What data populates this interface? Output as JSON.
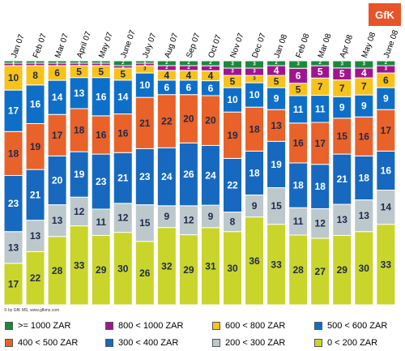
{
  "brand": {
    "logo_text": "GfK",
    "copyright": "© by GfK MS, www.gfkms.com"
  },
  "colors": {
    "gte1000": "#1a8a3a",
    "800_1000": "#a0158f",
    "600_800": "#f8c21a",
    "500_600": "#0e6fc9",
    "400_500": "#e8622a",
    "300_400": "#1769c0",
    "200_300": "#bcc8cc",
    "0_200": "#c9d52a"
  },
  "chart_data": {
    "type": "bar",
    "stacked": true,
    "normalized_100": true,
    "categories": [
      "Jan 07",
      "Feb 07",
      "Mar 07",
      "April 07",
      "May 07",
      "June 07",
      "July 07",
      "Aug 07",
      "Sep 07",
      "Oct 07",
      "Nov 07",
      "Dec 07",
      "Jan 08",
      "Feb 08",
      "Mar 08",
      "Apr 08",
      "May 08",
      "June 08"
    ],
    "series": [
      {
        "name": "0 < 200 ZAR",
        "key": "0_200",
        "values": [
          17,
          22,
          28,
          33,
          29,
          30,
          26,
          32,
          29,
          31,
          30,
          36,
          33,
          28,
          27,
          29,
          30,
          33
        ]
      },
      {
        "name": "200 < 300 ZAR",
        "key": "200_300",
        "values": [
          13,
          13,
          13,
          12,
          11,
          12,
          15,
          9,
          12,
          9,
          8,
          9,
          15,
          11,
          12,
          13,
          13,
          14
        ]
      },
      {
        "name": "300 < 400 ZAR",
        "key": "300_400",
        "values": [
          23,
          21,
          20,
          19,
          23,
          21,
          23,
          24,
          26,
          24,
          22,
          18,
          19,
          18,
          18,
          21,
          18,
          16
        ]
      },
      {
        "name": "400 < 500 ZAR",
        "key": "400_500",
        "values": [
          18,
          19,
          17,
          18,
          16,
          16,
          21,
          22,
          20,
          20,
          19,
          18,
          13,
          16,
          17,
          15,
          16,
          17
        ]
      },
      {
        "name": "500 < 600 ZAR",
        "key": "500_600",
        "values": [
          17,
          16,
          14,
          13,
          16,
          14,
          10,
          6,
          6,
          6,
          10,
          10,
          9,
          11,
          11,
          9,
          9,
          9
        ]
      },
      {
        "name": "600 < 800 ZAR",
        "key": "600_800",
        "values": [
          10,
          8,
          6,
          5,
          5,
          5,
          3,
          4,
          4,
          4,
          5,
          3,
          5,
          5,
          7,
          7,
          7,
          6
        ]
      },
      {
        "name": "800 < 1000 ZAR",
        "key": "800_1000",
        "values": [
          1,
          1,
          1,
          1,
          1,
          1,
          1,
          2,
          2,
          2,
          3,
          3,
          4,
          6,
          5,
          5,
          4,
          3
        ]
      },
      {
        "name": ">= 1000 ZAR",
        "key": "gte1000",
        "values": [
          1,
          1,
          1,
          1,
          1,
          2,
          1,
          2,
          2,
          2,
          3,
          3,
          2,
          3,
          2,
          3,
          3,
          2
        ]
      }
    ],
    "ylim": [
      0,
      100
    ],
    "legend_position": "bottom",
    "grid": false
  },
  "legend": [
    {
      "label": ">= 1000 ZAR",
      "key": "gte1000"
    },
    {
      "label": "800 < 1000 ZAR",
      "key": "800_1000"
    },
    {
      "label": "600 < 800 ZAR",
      "key": "600_800"
    },
    {
      "label": "500 < 600 ZAR",
      "key": "500_600"
    },
    {
      "label": "400 < 500 ZAR",
      "key": "400_500"
    },
    {
      "label": "300 < 400 ZAR",
      "key": "300_400"
    },
    {
      "label": "200 < 300 ZAR",
      "key": "200_300"
    },
    {
      "label": "0 < 200 ZAR",
      "key": "0_200"
    }
  ]
}
